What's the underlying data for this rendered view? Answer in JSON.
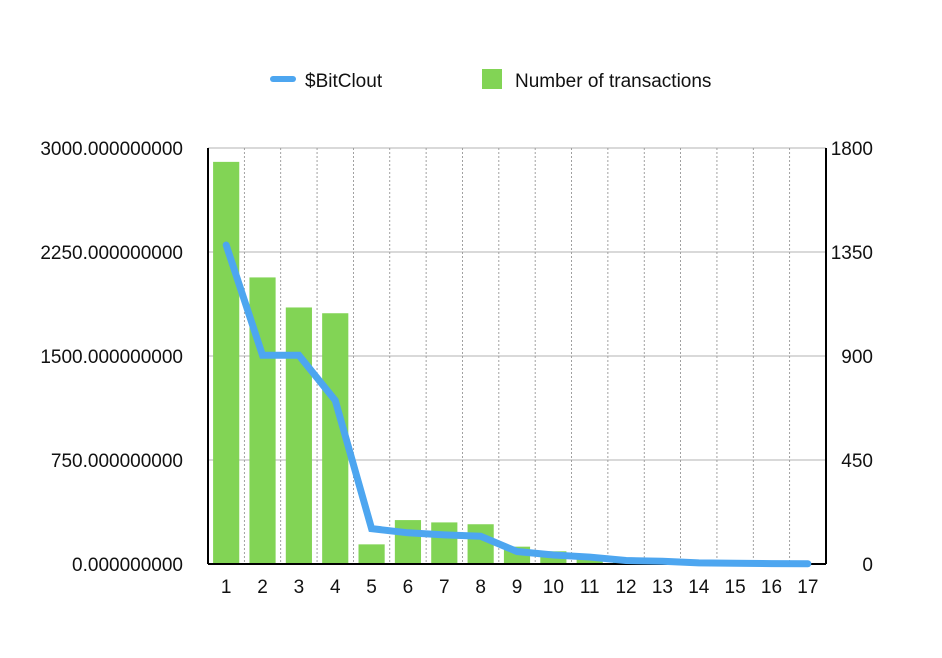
{
  "chart_data": {
    "type": "bar",
    "title": "",
    "xlabel": "",
    "ylabel": "",
    "categories": [
      "1",
      "2",
      "3",
      "4",
      "5",
      "6",
      "7",
      "8",
      "9",
      "10",
      "11",
      "12",
      "13",
      "14",
      "15",
      "16",
      "17"
    ],
    "y_left": {
      "ylim": [
        0,
        3000
      ],
      "ticks": [
        0,
        750,
        1500,
        2250,
        3000
      ],
      "tick_labels": [
        "0.000000000",
        "750.000000000",
        "1500.000000000",
        "2250.000000000",
        "3000.000000000"
      ]
    },
    "y_right": {
      "ylim": [
        0,
        1800
      ],
      "ticks": [
        0,
        450,
        900,
        1350,
        1800
      ],
      "tick_labels": [
        "0",
        "450",
        "900",
        "1350",
        "1800"
      ]
    },
    "series": [
      {
        "name": "$BitClout",
        "kind": "line",
        "axis": "left",
        "color": "#4da6f0",
        "values": [
          2300,
          1505,
          1505,
          1180,
          255,
          225,
          210,
          200,
          90,
          65,
          50,
          25,
          20,
          8,
          5,
          3,
          2
        ]
      },
      {
        "name": "Number of transactions",
        "kind": "bar",
        "axis": "right",
        "color": "#82d455",
        "values": [
          1740,
          1240,
          1110,
          1085,
          85,
          190,
          180,
          172,
          75,
          55,
          38,
          22,
          18,
          8,
          5,
          3,
          2
        ]
      }
    ],
    "grid": true,
    "legend_position": "top"
  }
}
